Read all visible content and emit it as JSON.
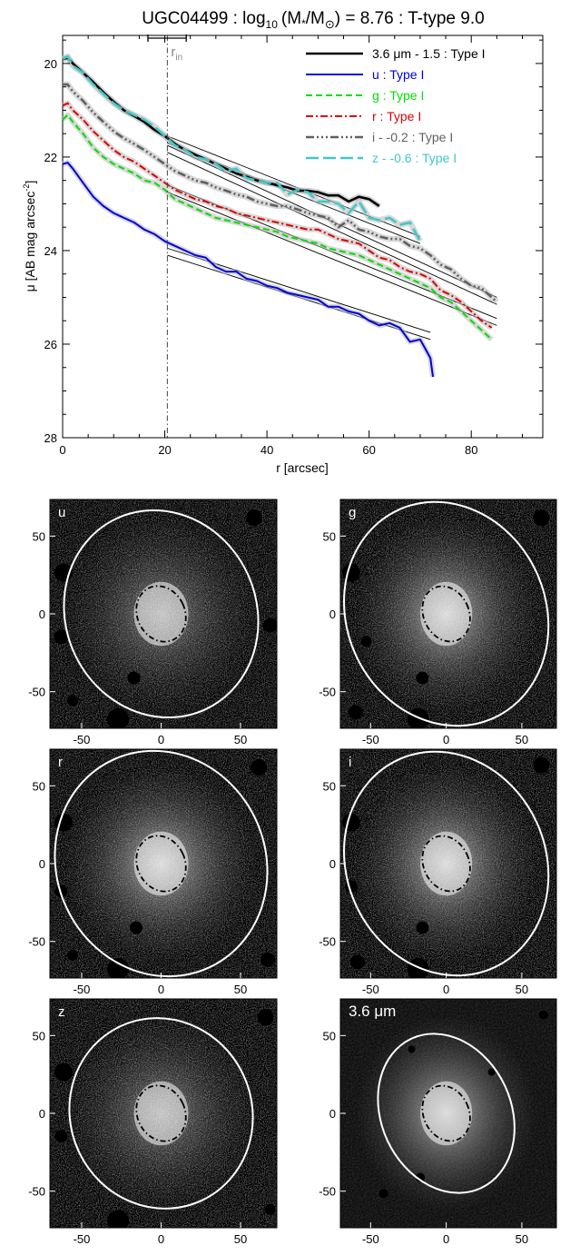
{
  "chart_data": [
    {
      "type": "line",
      "title": {
        "name": "UGC04499",
        "sub": "10",
        "mass_pre": "(M",
        "star": "*",
        "slash": "/M",
        "sun": "⊙",
        "rest": ") = 8.76 : T-type 9.0",
        "log": " : log"
      },
      "xlabel": "r [arcsec]",
      "ylabel": {
        "main": "μ [AB mag arcsec",
        "sup": "-2",
        "end": "]"
      },
      "xlim": [
        0,
        94
      ],
      "ylim": [
        28,
        19.4
      ],
      "xticks": [
        0,
        20,
        40,
        60,
        80
      ],
      "yticks": [
        20,
        22,
        24,
        26,
        28
      ],
      "r_in": {
        "label": "r",
        "sub": "in",
        "value": 20.5,
        "err_low": 16.7,
        "err_high": 24.2
      },
      "series": [
        {
          "name": "3.6 μm - 1.5 : Type I",
          "color": "#000000",
          "dash": "",
          "width": 2.6,
          "x": [
            0,
            1,
            2,
            4,
            6,
            8,
            10,
            12,
            14,
            16,
            18,
            20,
            22,
            24,
            26,
            28,
            30,
            32,
            34,
            36,
            38,
            40,
            42,
            44,
            46,
            48,
            50,
            52,
            54,
            56,
            58,
            60,
            62
          ],
          "y": [
            19.9,
            19.88,
            20.0,
            20.2,
            20.4,
            20.62,
            20.82,
            21.0,
            21.12,
            21.25,
            21.42,
            21.55,
            21.72,
            21.85,
            21.95,
            22.05,
            22.15,
            22.25,
            22.35,
            22.42,
            22.5,
            22.55,
            22.6,
            22.65,
            22.72,
            22.72,
            22.75,
            22.82,
            22.82,
            22.95,
            22.85,
            22.9,
            23.05
          ]
        },
        {
          "name": "u : Type I",
          "color": "#0000dd",
          "dash": "",
          "width": 2.0,
          "x": [
            0,
            1,
            2,
            4,
            6,
            8,
            10,
            12,
            14,
            16,
            18,
            20,
            22,
            24,
            26,
            28,
            30,
            32,
            34,
            36,
            38,
            40,
            42,
            44,
            46,
            48,
            50,
            52,
            54,
            56,
            58,
            60,
            62,
            64,
            66,
            68,
            70,
            71,
            72,
            72.5
          ],
          "y": [
            22.15,
            22.12,
            22.25,
            22.55,
            22.85,
            23.05,
            23.2,
            23.3,
            23.4,
            23.55,
            23.65,
            23.8,
            23.9,
            24.0,
            24.1,
            24.15,
            24.35,
            24.45,
            24.45,
            24.6,
            24.65,
            24.75,
            24.8,
            24.9,
            24.95,
            25.0,
            25.05,
            25.2,
            25.2,
            25.3,
            25.35,
            25.5,
            25.6,
            25.55,
            25.65,
            25.95,
            25.9,
            26.1,
            26.3,
            26.7
          ]
        },
        {
          "name": "g : Type I",
          "color": "#00dd00",
          "dash": "7,4",
          "width": 2.0,
          "x": [
            0,
            1,
            2,
            4,
            6,
            8,
            10,
            12,
            14,
            16,
            18,
            20,
            22,
            24,
            26,
            28,
            30,
            32,
            34,
            36,
            38,
            40,
            42,
            44,
            46,
            48,
            50,
            52,
            54,
            56,
            58,
            60,
            62,
            64,
            66,
            68,
            70,
            72,
            74,
            76,
            78,
            80,
            82,
            84
          ],
          "y": [
            21.2,
            21.1,
            21.25,
            21.5,
            21.8,
            22.0,
            22.15,
            22.25,
            22.35,
            22.5,
            22.55,
            22.7,
            22.9,
            23.0,
            23.1,
            23.2,
            23.3,
            23.35,
            23.4,
            23.45,
            23.5,
            23.55,
            23.6,
            23.7,
            23.75,
            23.8,
            23.85,
            23.95,
            24.0,
            24.05,
            24.1,
            24.2,
            24.3,
            24.4,
            24.5,
            24.6,
            24.7,
            24.8,
            25.0,
            25.1,
            25.3,
            25.5,
            25.7,
            25.9
          ]
        },
        {
          "name": "r : Type I",
          "color": "#dd0000",
          "dash": "8,3,2,3",
          "width": 2.0,
          "x": [
            0,
            1,
            2,
            4,
            6,
            8,
            10,
            12,
            14,
            16,
            18,
            20,
            22,
            24,
            26,
            28,
            30,
            32,
            34,
            36,
            38,
            40,
            42,
            44,
            46,
            48,
            50,
            52,
            54,
            56,
            58,
            60,
            62,
            64,
            66,
            68,
            70,
            72,
            74,
            76,
            78,
            80,
            82,
            84
          ],
          "y": [
            20.9,
            20.85,
            21.0,
            21.2,
            21.45,
            21.65,
            21.85,
            22.0,
            22.1,
            22.25,
            22.4,
            22.55,
            22.7,
            22.8,
            22.9,
            22.95,
            23.05,
            23.1,
            23.2,
            23.25,
            23.3,
            23.35,
            23.4,
            23.45,
            23.5,
            23.55,
            23.55,
            23.65,
            23.75,
            23.8,
            23.85,
            24.0,
            24.15,
            24.2,
            24.35,
            24.45,
            24.5,
            24.6,
            24.85,
            24.95,
            25.1,
            25.3,
            25.5,
            25.65
          ]
        },
        {
          "name": "i - -0.2 : Type I",
          "color": "#606060",
          "dash": "9,3,2,3,2,3,2,3",
          "width": 2.6,
          "x": [
            0,
            1,
            2,
            4,
            6,
            8,
            10,
            12,
            14,
            16,
            18,
            20,
            22,
            24,
            26,
            28,
            30,
            32,
            34,
            36,
            38,
            40,
            42,
            44,
            46,
            48,
            50,
            52,
            54,
            56,
            58,
            60,
            62,
            64,
            66,
            68,
            70,
            72,
            74,
            76,
            78,
            80,
            82,
            84,
            85
          ],
          "y": [
            20.45,
            20.45,
            20.6,
            20.8,
            21.05,
            21.25,
            21.45,
            21.6,
            21.72,
            21.85,
            22.0,
            22.15,
            22.3,
            22.4,
            22.5,
            22.55,
            22.65,
            22.72,
            22.8,
            22.85,
            22.95,
            23.0,
            23.05,
            23.05,
            23.12,
            23.2,
            23.25,
            23.3,
            23.5,
            23.35,
            23.55,
            23.6,
            23.7,
            23.75,
            23.75,
            23.9,
            23.95,
            24.1,
            24.3,
            24.4,
            24.6,
            24.75,
            24.8,
            25.0,
            25.1
          ]
        },
        {
          "name": "z - -0.6 : Type I",
          "color": "#40c8c8",
          "dash": "14,5",
          "width": 2.6,
          "x": [
            0,
            1,
            2,
            4,
            6,
            8,
            10,
            12,
            14,
            16,
            18,
            20,
            22,
            24,
            26,
            28,
            30,
            32,
            34,
            36,
            38,
            40,
            42,
            44,
            46,
            48,
            50,
            52,
            54,
            56,
            58,
            60,
            62,
            64,
            66,
            68,
            70
          ],
          "y": [
            19.9,
            19.85,
            20.05,
            20.2,
            20.45,
            20.65,
            20.85,
            21.0,
            21.1,
            21.2,
            21.35,
            21.55,
            21.75,
            21.85,
            22.0,
            22.05,
            22.15,
            22.3,
            22.25,
            22.45,
            22.5,
            22.55,
            22.55,
            22.8,
            22.7,
            22.75,
            22.95,
            22.95,
            23.0,
            23.2,
            22.95,
            23.3,
            23.35,
            23.3,
            23.45,
            23.4,
            23.8
          ]
        }
      ],
      "fits": [
        {
          "x": [
            20.5,
            85
          ],
          "y": [
            21.75,
            25.0
          ]
        },
        {
          "x": [
            20.5,
            85
          ],
          "y": [
            21.9,
            25.15
          ]
        },
        {
          "x": [
            20.5,
            85
          ],
          "y": [
            22.6,
            25.45
          ]
        },
        {
          "x": [
            20.5,
            85
          ],
          "y": [
            22.75,
            25.6
          ]
        },
        {
          "x": [
            20.5,
            72
          ],
          "y": [
            23.95,
            25.75
          ]
        },
        {
          "x": [
            20.5,
            72
          ],
          "y": [
            24.1,
            25.9
          ]
        },
        {
          "x": [
            20.5,
            70
          ],
          "y": [
            21.55,
            23.7
          ]
        },
        {
          "x": [
            20.5,
            70
          ],
          "y": [
            21.7,
            23.85
          ]
        }
      ],
      "grid": false,
      "legend_position": "top-right"
    },
    {
      "type": "heatmap",
      "panels": [
        {
          "label": "u",
          "xticks": [
            "-50",
            "0",
            "50"
          ],
          "yticks": [
            "50",
            "0",
            "-50"
          ]
        },
        {
          "label": "g",
          "xticks": [
            "-50",
            "0",
            "50"
          ],
          "yticks": [
            "50",
            "0",
            "-50"
          ]
        },
        {
          "label": "r",
          "xticks": [
            "-50",
            "0",
            "50"
          ],
          "yticks": [
            "50",
            "0",
            "-50"
          ]
        },
        {
          "label": "i",
          "xticks": [
            "-50",
            "0",
            "50"
          ],
          "yticks": [
            "50",
            "0",
            "-50"
          ]
        },
        {
          "label": "z",
          "xticks": [
            "-50",
            "0",
            "50"
          ],
          "yticks": [
            "50",
            "0",
            "-50"
          ]
        },
        {
          "label": "3.6 μm",
          "xticks": [
            "-50",
            "0",
            "50"
          ],
          "yticks": [
            "50",
            "0",
            "-50"
          ]
        }
      ]
    }
  ]
}
